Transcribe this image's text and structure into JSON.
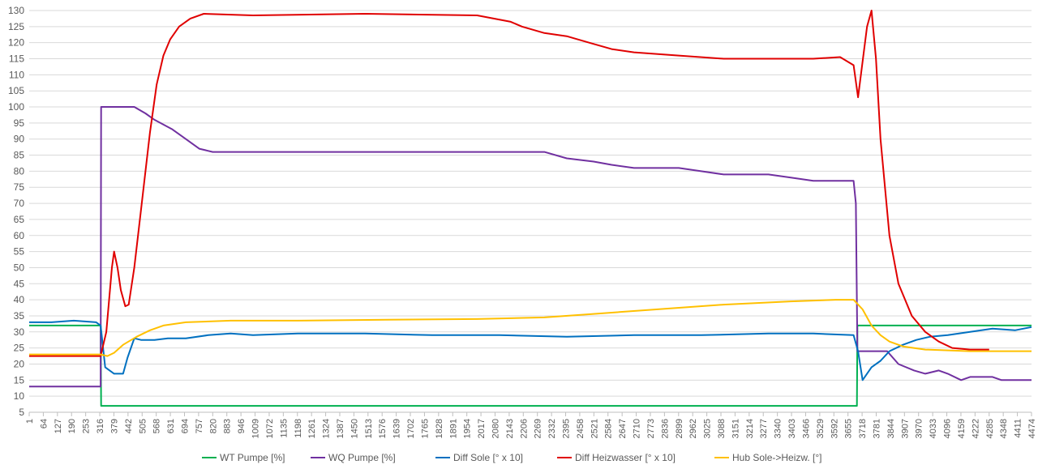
{
  "chart_data": {
    "type": "line",
    "title": "",
    "xlabel": "",
    "ylabel": "",
    "ylim": [
      5,
      130
    ],
    "yticks": [
      5,
      10,
      15,
      20,
      25,
      30,
      35,
      40,
      45,
      50,
      55,
      60,
      65,
      70,
      75,
      80,
      85,
      90,
      95,
      100,
      105,
      110,
      115,
      120,
      125,
      130
    ],
    "xlim": [
      1,
      4474
    ],
    "xticks": [
      1,
      64,
      127,
      190,
      253,
      316,
      379,
      442,
      505,
      568,
      631,
      694,
      757,
      820,
      883,
      946,
      1009,
      1072,
      1135,
      1198,
      1261,
      1324,
      1387,
      1450,
      1513,
      1576,
      1639,
      1702,
      1765,
      1828,
      1891,
      1954,
      2017,
      2080,
      2143,
      2206,
      2269,
      2332,
      2395,
      2458,
      2521,
      2584,
      2647,
      2710,
      2773,
      2836,
      2899,
      2962,
      3025,
      3088,
      3151,
      3214,
      3277,
      3340,
      3403,
      3466,
      3529,
      3592,
      3655,
      3718,
      3781,
      3844,
      3907,
      3970,
      4033,
      4096,
      4159,
      4222,
      4285,
      4348,
      4411,
      4474
    ],
    "grid": true,
    "legend_position": "bottom",
    "series": [
      {
        "name": "WT Pumpe [%]",
        "color": "#00b050",
        "points": [
          [
            1,
            32
          ],
          [
            320,
            32
          ],
          [
            322,
            7
          ],
          [
            3695,
            7
          ],
          [
            3697,
            32
          ],
          [
            4474,
            32
          ]
        ]
      },
      {
        "name": "WQ Pumpe [%]",
        "color": "#7030a0",
        "points": [
          [
            1,
            13
          ],
          [
            320,
            13
          ],
          [
            322,
            100
          ],
          [
            470,
            100
          ],
          [
            520,
            98
          ],
          [
            560,
            96
          ],
          [
            640,
            93
          ],
          [
            700,
            90
          ],
          [
            760,
            87
          ],
          [
            820,
            86
          ],
          [
            1500,
            86
          ],
          [
            2300,
            86
          ],
          [
            2400,
            84
          ],
          [
            2520,
            83
          ],
          [
            2600,
            82
          ],
          [
            2700,
            81
          ],
          [
            2900,
            81
          ],
          [
            3000,
            80
          ],
          [
            3100,
            79
          ],
          [
            3300,
            79
          ],
          [
            3400,
            78
          ],
          [
            3500,
            77
          ],
          [
            3680,
            77
          ],
          [
            3690,
            70
          ],
          [
            3697,
            24
          ],
          [
            3830,
            24
          ],
          [
            3880,
            20
          ],
          [
            3950,
            18
          ],
          [
            4000,
            17
          ],
          [
            4060,
            18
          ],
          [
            4100,
            17
          ],
          [
            4160,
            15
          ],
          [
            4200,
            16
          ],
          [
            4300,
            16
          ],
          [
            4340,
            15
          ],
          [
            4474,
            15
          ]
        ]
      },
      {
        "name": "Diff Sole [° x 10]",
        "color": "#0070c0",
        "points": [
          [
            1,
            33
          ],
          [
            100,
            33
          ],
          [
            200,
            33.5
          ],
          [
            300,
            33
          ],
          [
            320,
            32
          ],
          [
            340,
            19
          ],
          [
            380,
            17
          ],
          [
            420,
            17
          ],
          [
            440,
            22
          ],
          [
            470,
            28
          ],
          [
            500,
            27.5
          ],
          [
            560,
            27.5
          ],
          [
            620,
            28
          ],
          [
            700,
            28
          ],
          [
            800,
            29
          ],
          [
            900,
            29.5
          ],
          [
            1000,
            29
          ],
          [
            1200,
            29.5
          ],
          [
            1500,
            29.5
          ],
          [
            1800,
            29
          ],
          [
            2100,
            29
          ],
          [
            2400,
            28.5
          ],
          [
            2700,
            29
          ],
          [
            3000,
            29
          ],
          [
            3300,
            29.5
          ],
          [
            3500,
            29.5
          ],
          [
            3680,
            29
          ],
          [
            3700,
            24
          ],
          [
            3720,
            15
          ],
          [
            3760,
            19
          ],
          [
            3800,
            21
          ],
          [
            3840,
            24
          ],
          [
            3900,
            26
          ],
          [
            3960,
            27.5
          ],
          [
            4020,
            28.5
          ],
          [
            4100,
            29
          ],
          [
            4200,
            30
          ],
          [
            4300,
            31
          ],
          [
            4400,
            30.5
          ],
          [
            4474,
            31.5
          ]
        ]
      },
      {
        "name": "Diff Heizwasser [° x 10]",
        "color": "#e00000",
        "points": [
          [
            1,
            22.5
          ],
          [
            250,
            22.5
          ],
          [
            320,
            22.5
          ],
          [
            345,
            30
          ],
          [
            370,
            50
          ],
          [
            380,
            55
          ],
          [
            395,
            50
          ],
          [
            410,
            43
          ],
          [
            430,
            38
          ],
          [
            445,
            38.5
          ],
          [
            470,
            50
          ],
          [
            500,
            68
          ],
          [
            540,
            92
          ],
          [
            570,
            107
          ],
          [
            600,
            116
          ],
          [
            630,
            121
          ],
          [
            670,
            125
          ],
          [
            720,
            127.5
          ],
          [
            780,
            129
          ],
          [
            1000,
            128.5
          ],
          [
            1500,
            129
          ],
          [
            2000,
            128.5
          ],
          [
            2150,
            126.5
          ],
          [
            2200,
            125
          ],
          [
            2300,
            123
          ],
          [
            2400,
            122
          ],
          [
            2500,
            120
          ],
          [
            2600,
            118
          ],
          [
            2700,
            117
          ],
          [
            2900,
            116
          ],
          [
            3100,
            115
          ],
          [
            3300,
            115
          ],
          [
            3500,
            115
          ],
          [
            3620,
            115.5
          ],
          [
            3680,
            113
          ],
          [
            3700,
            103
          ],
          [
            3740,
            125
          ],
          [
            3760,
            130
          ],
          [
            3780,
            115
          ],
          [
            3800,
            90
          ],
          [
            3840,
            60
          ],
          [
            3880,
            45
          ],
          [
            3940,
            35
          ],
          [
            4000,
            30
          ],
          [
            4060,
            27
          ],
          [
            4120,
            25
          ],
          [
            4200,
            24.5
          ],
          [
            4285,
            24.5
          ]
        ]
      },
      {
        "name": "Hub Sole->Heizw. [°]",
        "color": "#ffc000",
        "points": [
          [
            1,
            23
          ],
          [
            200,
            23
          ],
          [
            320,
            23
          ],
          [
            350,
            22.5
          ],
          [
            380,
            23.5
          ],
          [
            420,
            26
          ],
          [
            480,
            28.5
          ],
          [
            540,
            30.5
          ],
          [
            600,
            32
          ],
          [
            700,
            33
          ],
          [
            900,
            33.5
          ],
          [
            1200,
            33.5
          ],
          [
            1600,
            33.8
          ],
          [
            2000,
            34
          ],
          [
            2300,
            34.5
          ],
          [
            2500,
            35.5
          ],
          [
            2800,
            37
          ],
          [
            3100,
            38.5
          ],
          [
            3400,
            39.5
          ],
          [
            3600,
            40
          ],
          [
            3680,
            40
          ],
          [
            3720,
            37
          ],
          [
            3760,
            32
          ],
          [
            3800,
            29
          ],
          [
            3840,
            27
          ],
          [
            3900,
            25.5
          ],
          [
            4000,
            24.5
          ],
          [
            4200,
            24
          ],
          [
            4474,
            24
          ]
        ]
      }
    ]
  }
}
